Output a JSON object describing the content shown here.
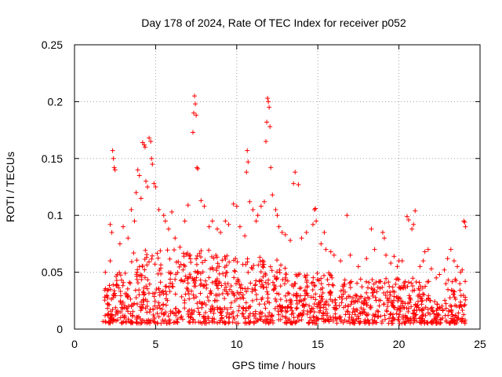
{
  "chart_data": {
    "type": "scatter",
    "title": "Day 178 of 2024, Rate Of TEC Index for receiver p052",
    "xlabel": "GPS time / hours",
    "ylabel": "ROTI / TECUs",
    "xlim": [
      0,
      25
    ],
    "ylim": [
      0,
      0.25
    ],
    "xticks": [
      "0",
      "5",
      "10",
      "15",
      "20",
      "25"
    ],
    "yticks": [
      "0",
      "0.05",
      "0.1",
      "0.15",
      "0.2",
      "0.25"
    ],
    "grid": true,
    "marker": "+",
    "color": "#ff0000",
    "x_start": 1.75,
    "x_end": 24.1,
    "series": [
      {
        "name": "ROTI",
        "x": [
          1.9,
          2.2,
          2.35,
          2.4,
          2.45,
          2.5,
          2.3,
          2.2,
          2.8,
          3.0,
          3.3,
          3.5,
          3.7,
          3.8,
          3.9,
          4.0,
          4.1,
          4.2,
          4.3,
          4.35,
          4.4,
          4.5,
          4.6,
          4.7,
          4.75,
          4.8,
          4.9,
          5.0,
          5.2,
          5.5,
          5.6,
          5.8,
          6.0,
          6.2,
          6.5,
          6.8,
          7.0,
          7.3,
          7.35,
          7.4,
          7.45,
          7.5,
          7.55,
          7.6,
          7.8,
          8.0,
          8.3,
          8.5,
          8.8,
          9.0,
          9.3,
          9.5,
          9.8,
          10.0,
          10.2,
          10.5,
          10.6,
          10.65,
          10.7,
          10.8,
          11.0,
          11.2,
          11.3,
          11.5,
          11.7,
          11.8,
          11.85,
          11.9,
          11.95,
          12.0,
          12.05,
          12.1,
          12.2,
          12.4,
          12.5,
          12.6,
          12.8,
          13.0,
          13.3,
          13.5,
          13.6,
          13.8,
          14.0,
          14.3,
          14.7,
          14.8,
          14.85,
          14.9,
          15.2,
          15.4,
          15.5,
          15.8,
          16.0,
          16.4,
          16.8,
          17.0,
          17.5,
          18.0,
          18.3,
          18.5,
          19.0,
          19.1,
          19.2,
          19.5,
          19.7,
          19.9,
          20.0,
          20.2,
          20.5,
          20.6,
          20.8,
          20.9,
          21.0,
          21.3,
          21.5,
          21.6,
          21.8,
          22.0,
          22.3,
          22.5,
          22.8,
          23.0,
          23.2,
          23.4,
          23.6,
          23.8,
          23.9,
          24.0,
          24.05,
          24.1
        ],
        "y": [
          0.05,
          0.092,
          0.157,
          0.15,
          0.142,
          0.14,
          0.085,
          0.06,
          0.075,
          0.09,
          0.08,
          0.105,
          0.095,
          0.12,
          0.14,
          0.135,
          0.115,
          0.164,
          0.162,
          0.16,
          0.13,
          0.125,
          0.168,
          0.165,
          0.15,
          0.145,
          0.128,
          0.125,
          0.105,
          0.1,
          0.095,
          0.088,
          0.103,
          0.08,
          0.072,
          0.095,
          0.109,
          0.173,
          0.19,
          0.205,
          0.198,
          0.188,
          0.142,
          0.141,
          0.113,
          0.108,
          0.09,
          0.095,
          0.088,
          0.085,
          0.095,
          0.092,
          0.11,
          0.108,
          0.09,
          0.082,
          0.138,
          0.157,
          0.147,
          0.112,
          0.105,
          0.095,
          0.1,
          0.108,
          0.112,
          0.165,
          0.182,
          0.203,
          0.2,
          0.195,
          0.178,
          0.142,
          0.118,
          0.105,
          0.1,
          0.09,
          0.085,
          0.083,
          0.078,
          0.128,
          0.138,
          0.127,
          0.08,
          0.085,
          0.092,
          0.105,
          0.106,
          0.095,
          0.075,
          0.085,
          0.07,
          0.068,
          0.065,
          0.06,
          0.1,
          0.065,
          0.055,
          0.062,
          0.088,
          0.07,
          0.085,
          0.08,
          0.065,
          0.058,
          0.064,
          0.055,
          0.06,
          0.06,
          0.099,
          0.096,
          0.088,
          0.092,
          0.104,
          0.055,
          0.06,
          0.068,
          0.07,
          0.053,
          0.045,
          0.048,
          0.052,
          0.062,
          0.07,
          0.06,
          0.055,
          0.05,
          0.052,
          0.095,
          0.094,
          0.09
        ],
        "baseline_band": [
          0.005,
          0.045
        ]
      }
    ]
  }
}
